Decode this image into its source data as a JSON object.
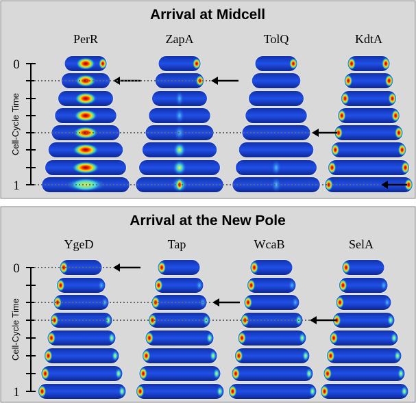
{
  "panels": [
    {
      "title": "Arrival at Midcell",
      "axis_label": "Cell-Cycle Time",
      "tick_start": "0",
      "tick_end": "1",
      "columns": [
        "PerR",
        "ZapA",
        "TolQ",
        "KdtA"
      ]
    },
    {
      "title": "Arrival at the New Pole",
      "axis_label": "Cell-Cycle Time",
      "tick_start": "0",
      "tick_end": "1",
      "columns": [
        "YgeD",
        "Tap",
        "WcaB",
        "SelA"
      ]
    }
  ]
}
